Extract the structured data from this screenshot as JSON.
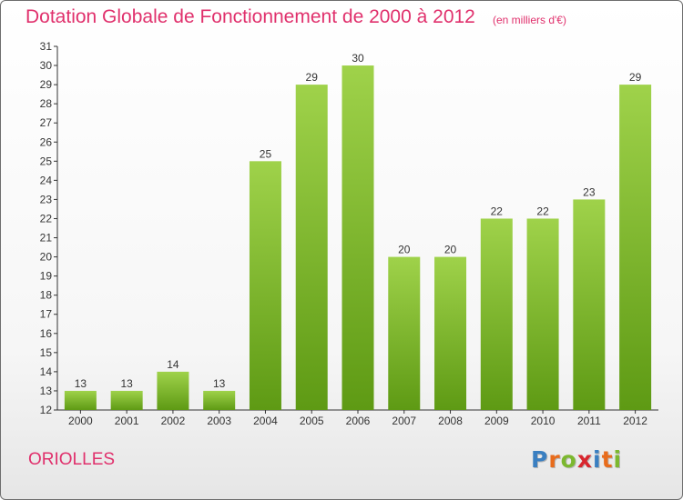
{
  "header": {
    "title": "Dotation Globale de Fonctionnement de 2000 à 2012",
    "subtitle": "(en milliers d'€)"
  },
  "footer": {
    "commune": "ORIOLLES",
    "logo": [
      "P",
      "r",
      "o",
      "x",
      "i",
      "t",
      "i"
    ],
    "logo_colors": [
      "#3a7fc1",
      "#e86c1c",
      "#7cb82f",
      "#d8262e",
      "#3a7fc1",
      "#e86c1c",
      "#7cb82f"
    ]
  },
  "chart_data": {
    "type": "bar",
    "title": "Dotation Globale de Fonctionnement de 2000 à 2012",
    "subtitle": "(en milliers d'€)",
    "categories": [
      "2000",
      "2001",
      "2002",
      "2003",
      "2004",
      "2005",
      "2006",
      "2007",
      "2008",
      "2009",
      "2010",
      "2011",
      "2012"
    ],
    "values": [
      13,
      13,
      14,
      13,
      25,
      29,
      30,
      20,
      20,
      22,
      22,
      23,
      29
    ],
    "ylim": [
      12,
      31
    ],
    "yticks": [
      12,
      13,
      14,
      15,
      16,
      17,
      18,
      19,
      20,
      21,
      22,
      23,
      24,
      25,
      26,
      27,
      28,
      29,
      30,
      31
    ],
    "grid": false,
    "bar_color_top": "#9fd24a",
    "bar_color_bottom": "#5e9a14"
  }
}
